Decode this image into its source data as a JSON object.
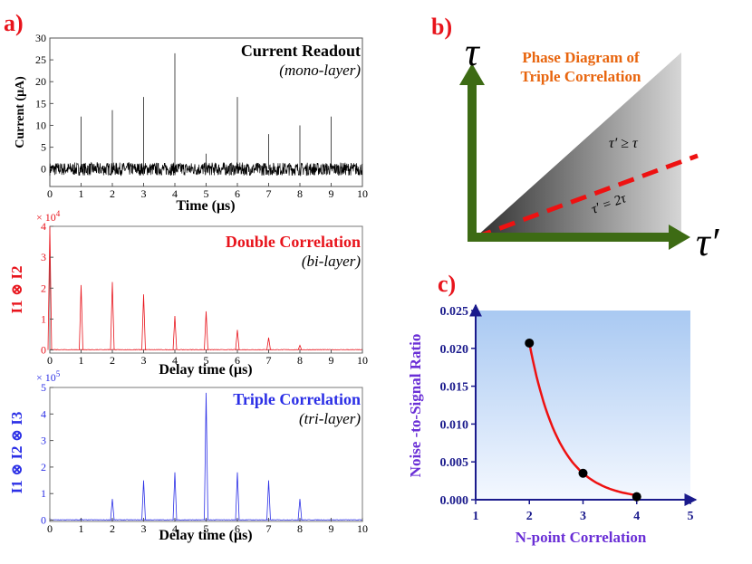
{
  "colors": {
    "black": "#000000",
    "red": "#e8141c",
    "blue": "#2b2fe6",
    "orange": "#e8650e",
    "green": "#3d6b14",
    "dash": "#ee1111",
    "purple": "#6a2fd6",
    "navy": "#1a1a8c"
  },
  "panels": {
    "a_label": "a)",
    "b_label": "b)",
    "c_label": "c)"
  },
  "chart_data": [
    {
      "id": "current-readout",
      "type": "line",
      "title": "Current Readout",
      "subtitle": "(mono-layer)",
      "xlabel": "Time (μs)",
      "ylabel": "Current (μA)",
      "xlim": [
        0,
        10
      ],
      "ylim": [
        -4,
        30
      ],
      "xticks": [
        "0",
        "1",
        "2",
        "3",
        "4",
        "5",
        "6",
        "7",
        "8",
        "9",
        "10"
      ],
      "yticks": [
        "0",
        "5",
        "10",
        "15",
        "20",
        "25",
        "30"
      ],
      "peaks": [
        [
          1,
          12
        ],
        [
          2,
          13.5
        ],
        [
          3,
          16.5
        ],
        [
          4,
          26.5
        ],
        [
          5,
          3.5
        ],
        [
          6,
          16.5
        ],
        [
          7,
          8
        ],
        [
          8,
          10
        ],
        [
          9,
          12
        ]
      ],
      "noise_amplitude": 1.5
    },
    {
      "id": "double-correlation",
      "type": "line",
      "title": "Double Correlation",
      "subtitle": "(bi-layer)",
      "xlabel": "Delay time (μs)",
      "ylabel": "I1 ⊗ I2",
      "multiplier": "× 10",
      "multiplier_exp": "4",
      "xlim": [
        0,
        10
      ],
      "ylim": [
        -0.1,
        4
      ],
      "xticks": [
        "0",
        "1",
        "2",
        "3",
        "4",
        "5",
        "6",
        "7",
        "8",
        "9",
        "10"
      ],
      "yticks": [
        "0",
        "1",
        "2",
        "3",
        "4"
      ],
      "peaks": [
        [
          0,
          4
        ],
        [
          1,
          2.1
        ],
        [
          2,
          2.2
        ],
        [
          3,
          1.8
        ],
        [
          4,
          1.1
        ],
        [
          5,
          1.25
        ],
        [
          6,
          0.65
        ],
        [
          7,
          0.4
        ],
        [
          8,
          0.15
        ]
      ]
    },
    {
      "id": "triple-correlation",
      "type": "line",
      "title": "Triple Correlation",
      "subtitle": "(tri-layer)",
      "xlabel": "Delay time (μs)",
      "ylabel": "I1 ⊗ I2 ⊗ I3",
      "multiplier": "× 10",
      "multiplier_exp": "5",
      "xlim": [
        0,
        10
      ],
      "ylim": [
        -0.05,
        5
      ],
      "xticks": [
        "0",
        "1",
        "2",
        "3",
        "4",
        "5",
        "6",
        "7",
        "8",
        "9",
        "10"
      ],
      "yticks": [
        "0",
        "1",
        "2",
        "3",
        "4",
        "5"
      ],
      "peaks": [
        [
          1,
          0.05
        ],
        [
          2,
          0.8
        ],
        [
          3,
          1.5
        ],
        [
          4,
          1.8
        ],
        [
          5,
          4.8
        ],
        [
          6,
          1.8
        ],
        [
          7,
          1.5
        ],
        [
          8,
          0.8
        ]
      ]
    },
    {
      "id": "phase-diagram",
      "type": "diagram",
      "title_line1": "Phase Diagram of",
      "title_line2": "Triple Correlation",
      "y_axis_symbol": "τ",
      "x_axis_symbol": "τ′",
      "region_label": "τ′ ≥ τ",
      "line_label": "τ′ = 2τ"
    },
    {
      "id": "noise-to-signal",
      "type": "scatter",
      "xlabel": "N-point Correlation",
      "ylabel": "Noise -to-Signal  Ratio",
      "xlim": [
        1,
        5
      ],
      "ylim": [
        0,
        0.025
      ],
      "xticks": [
        "1",
        "2",
        "3",
        "4",
        "5"
      ],
      "yticks": [
        "0.000",
        "0.005",
        "0.010",
        "0.015",
        "0.020",
        "0.025"
      ],
      "x": [
        2,
        3,
        4
      ],
      "y": [
        0.0207,
        0.0035,
        0.0004
      ]
    }
  ]
}
